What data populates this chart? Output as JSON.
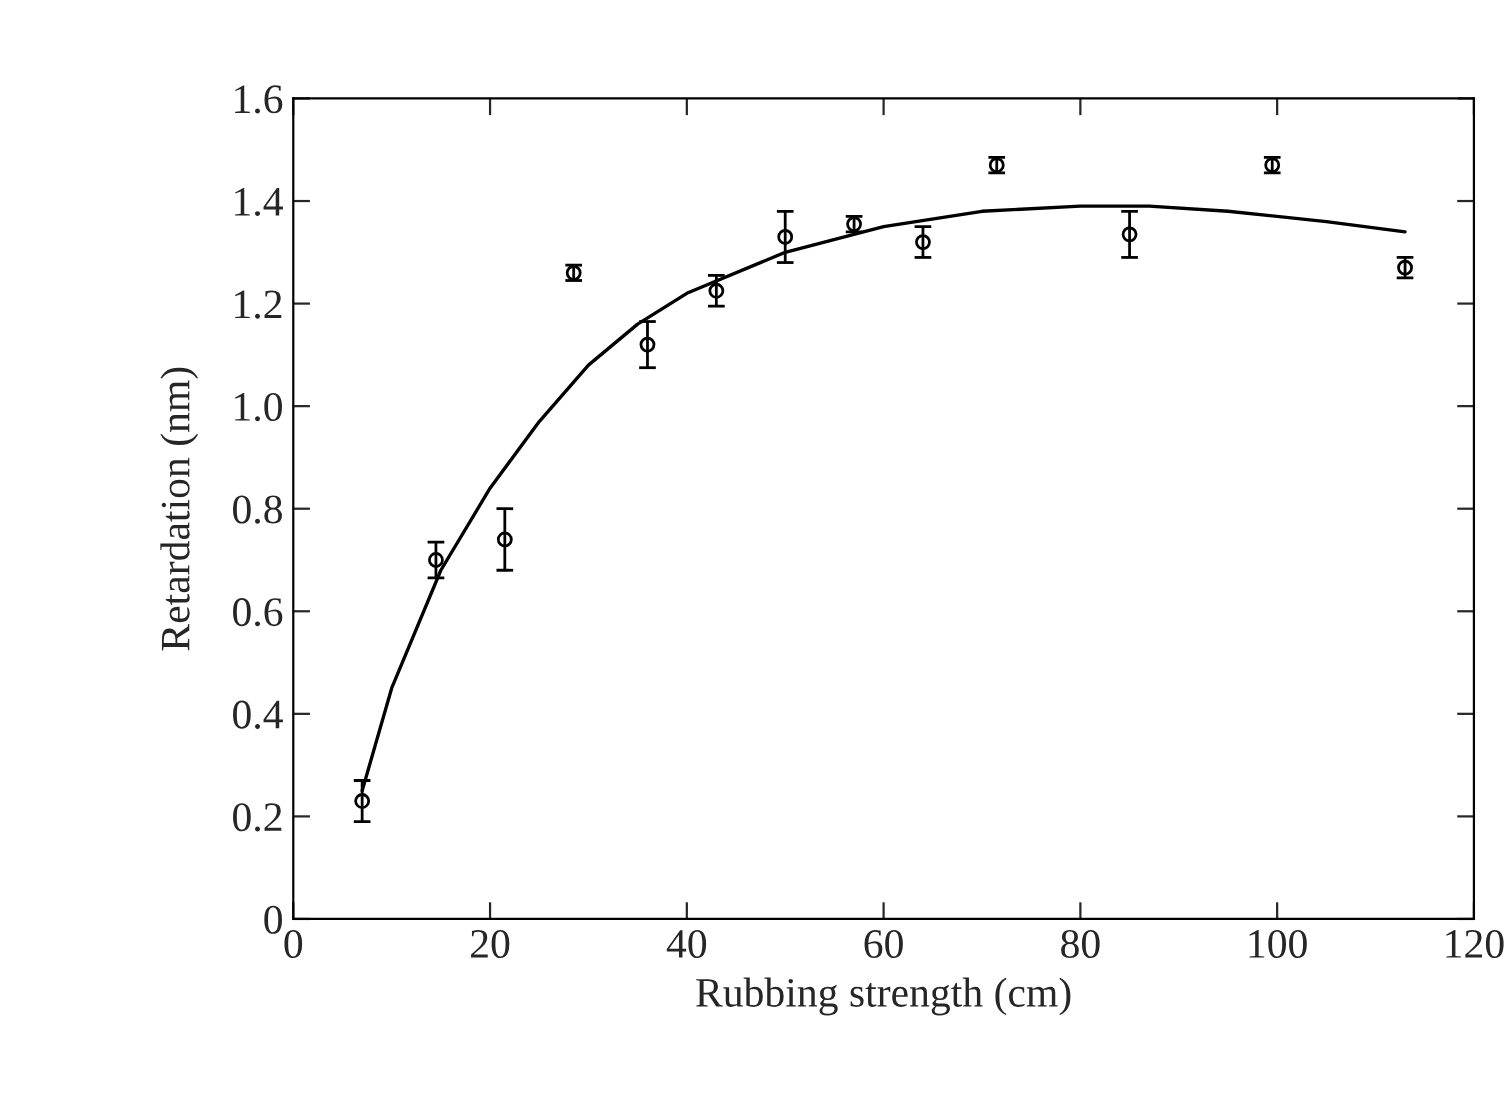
{
  "chart_data": {
    "type": "scatter",
    "xlabel": "Rubbing strength (cm)",
    "ylabel": "Retardation (nm)",
    "xlim": [
      0,
      120
    ],
    "ylim": [
      0,
      1.6
    ],
    "xticks": [
      0,
      20,
      40,
      60,
      80,
      100,
      120
    ],
    "yticks": [
      {
        "value": 0,
        "label": "0"
      },
      {
        "value": 0.2,
        "label": "0.2"
      },
      {
        "value": 0.4,
        "label": "0.4"
      },
      {
        "value": 0.6,
        "label": "0.6"
      },
      {
        "value": 0.8,
        "label": "0.8"
      },
      {
        "value": 1.0,
        "label": "1.0"
      },
      {
        "value": 1.2,
        "label": "1.2"
      },
      {
        "value": 1.4,
        "label": "1.4"
      },
      {
        "value": 1.6,
        "label": "1.6"
      }
    ],
    "grid": false,
    "legend": false,
    "marker": "circle",
    "series": [
      {
        "color": "#000000",
        "x": [
          7,
          14.5,
          21.5,
          28.5,
          36,
          43,
          50,
          57,
          64,
          71.5,
          85,
          99.5,
          113
        ],
        "values": [
          0.23,
          0.7,
          0.74,
          1.26,
          1.12,
          1.225,
          1.33,
          1.355,
          1.32,
          1.47,
          1.335,
          1.47,
          1.27
        ],
        "errors": [
          0.04,
          0.035,
          0.06,
          0.015,
          0.045,
          0.03,
          0.05,
          0.015,
          0.03,
          0.015,
          0.045,
          0.015,
          0.02
        ]
      },
      {
        "type": "line",
        "color": "#000000",
        "line_style": "solid",
        "marker": "none",
        "x": [
          7,
          10,
          15,
          20,
          25,
          30,
          35,
          40,
          50,
          60,
          70,
          80,
          87,
          95,
          105,
          113
        ],
        "values": [
          0.25,
          0.45,
          0.68,
          0.84,
          0.97,
          1.08,
          1.16,
          1.22,
          1.3,
          1.35,
          1.38,
          1.39,
          1.39,
          1.38,
          1.36,
          1.34
        ]
      }
    ]
  }
}
